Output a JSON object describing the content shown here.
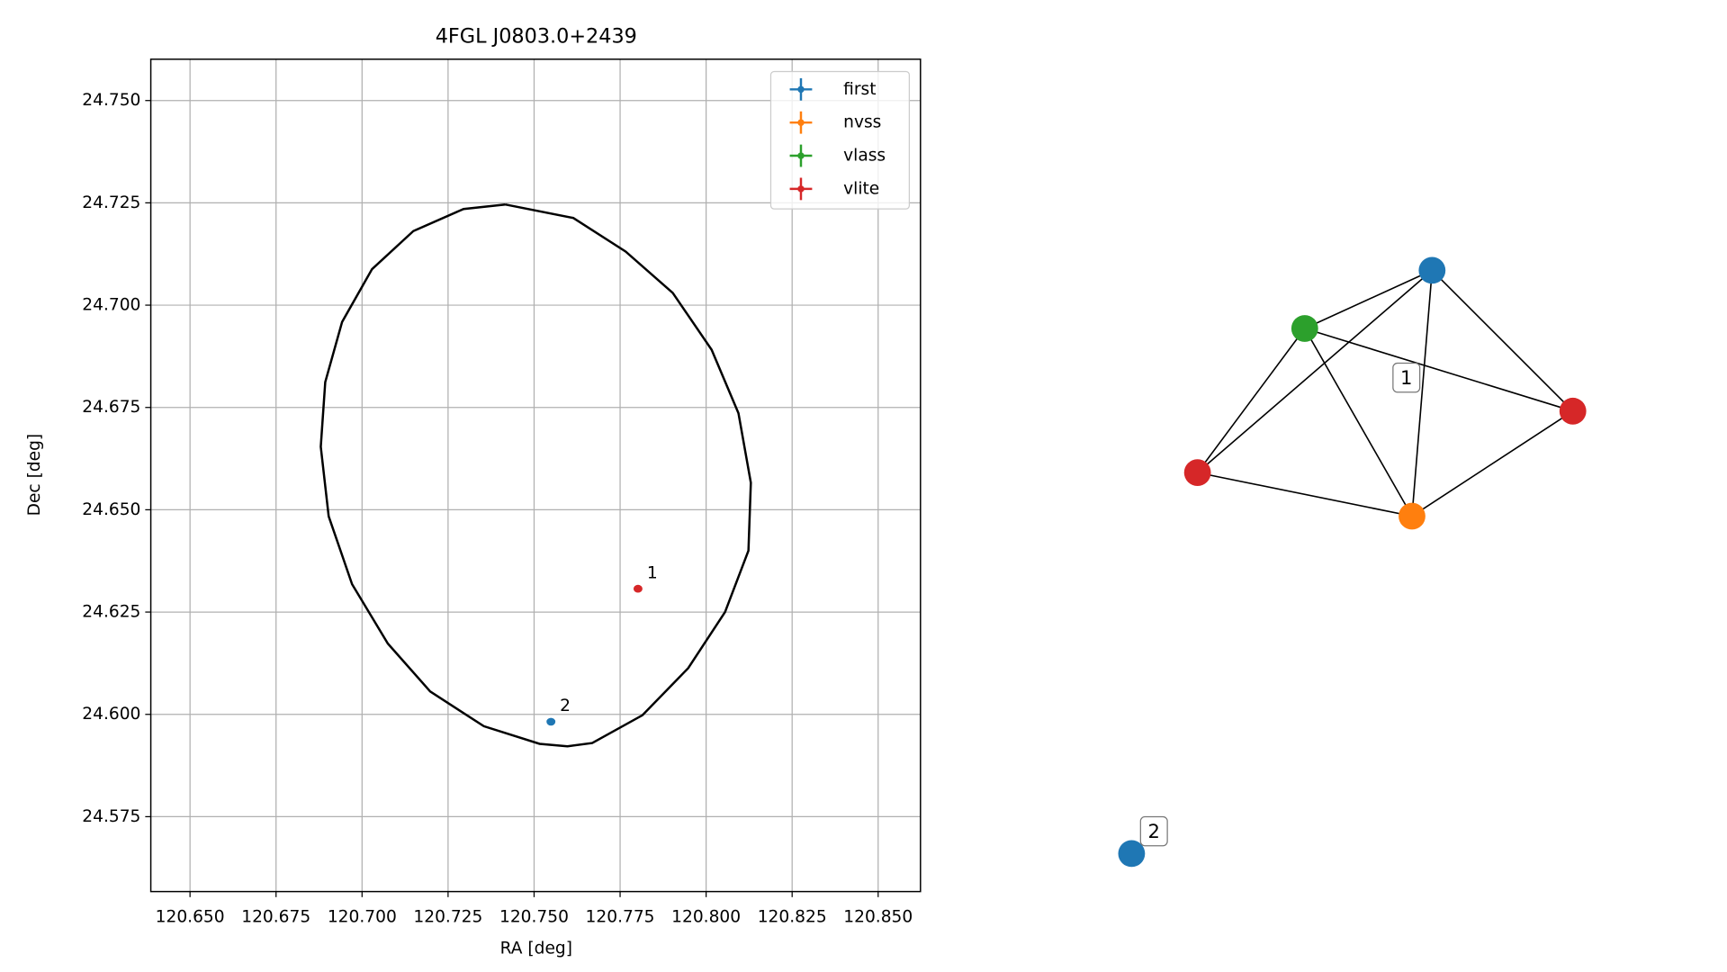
{
  "chart_data": [
    {
      "type": "scatter",
      "title": "4FGL J0803.0+2439",
      "xlabel": "RA [deg]",
      "ylabel": "Dec [deg]",
      "xlim": [
        120.6386,
        120.8623
      ],
      "ylim": [
        24.5567,
        24.7601
      ],
      "xticks": [
        {
          "value": 120.65,
          "label": "120.650"
        },
        120.675,
        {
          "value": 120.7,
          "label": "120.700"
        },
        120.725,
        {
          "value": 120.75,
          "label": "120.750"
        },
        120.775,
        {
          "value": 120.8,
          "label": "120.800"
        },
        120.825,
        {
          "value": 120.85,
          "label": "120.850"
        }
      ],
      "yticks": [
        {
          "value": 24.75,
          "label": "24.750"
        },
        24.725,
        {
          "value": 24.7,
          "label": "24.700"
        },
        24.675,
        {
          "value": 24.65,
          "label": "24.650"
        },
        24.625,
        {
          "value": 24.6,
          "label": "24.600"
        },
        24.575
      ],
      "grid": true,
      "legend": "upper right",
      "series": [
        {
          "name": "first",
          "color": "#1f77b4",
          "x": [
            120.7549
          ],
          "values": [
            24.5982
          ],
          "point_labels": [
            "2"
          ]
        },
        {
          "name": "nvss",
          "color": "#ff7f0e",
          "x": [],
          "values": [],
          "point_labels": []
        },
        {
          "name": "vlass",
          "color": "#2ca02c",
          "x": [],
          "values": [],
          "point_labels": []
        },
        {
          "name": "vlite",
          "color": "#d62728",
          "x": [
            120.7802
          ],
          "values": [
            24.6307
          ],
          "point_labels": [
            "1"
          ]
        }
      ],
      "ellipse": {
        "color": "#000000",
        "x": [
          120.7416,
          120.7614,
          120.7766,
          120.7903,
          120.8016,
          120.8094,
          120.813,
          120.8123,
          120.8055,
          120.7948,
          120.7815,
          120.7669,
          120.7597,
          120.7516,
          120.7354,
          120.7198,
          120.7075,
          120.6971,
          120.6903,
          120.688,
          120.6893,
          120.6942,
          120.7029,
          120.7149,
          120.7295,
          120.7416
        ],
        "values": [
          24.7246,
          24.7213,
          24.7131,
          24.703,
          24.6891,
          24.6736,
          24.6566,
          24.64,
          24.625,
          24.6113,
          24.5998,
          24.593,
          24.5922,
          24.5928,
          24.5971,
          24.6056,
          24.6173,
          24.6318,
          24.6484,
          24.6654,
          24.6812,
          24.6959,
          24.7088,
          24.7181,
          24.7235,
          24.7246
        ]
      }
    },
    {
      "type": "network",
      "nodes": [
        {
          "color": "#1f77b4"
        },
        {
          "color": "#2ca02c"
        },
        {
          "color": "#d62728"
        },
        {
          "color": "#d62728"
        },
        {
          "color": "#ff7f0e"
        },
        {
          "color": "#1f77b4"
        }
      ],
      "edges": [
        [
          1,
          0
        ],
        [
          1,
          4
        ],
        [
          1,
          2
        ],
        [
          0,
          3
        ],
        [
          0,
          4
        ],
        [
          0,
          2
        ],
        [
          3,
          1
        ],
        [
          3,
          4
        ],
        [
          4,
          2
        ]
      ],
      "group_labels": [
        "1",
        "2"
      ]
    }
  ]
}
